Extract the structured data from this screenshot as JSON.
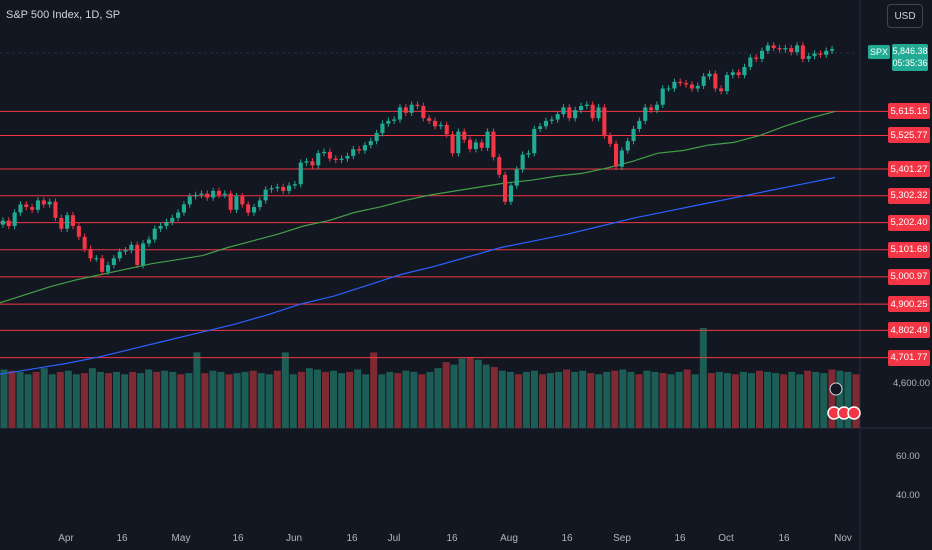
{
  "header": {
    "title": "S&P 500 Index, 1D, SP"
  },
  "currency_button": "USD",
  "symbol_tag": "SPX",
  "last_price": "5,846.38",
  "countdown": "05:35:36",
  "colors": {
    "up": "#22ab94",
    "down": "#f23645",
    "ma_short": "#43a047",
    "ma_long": "#2962ff",
    "level": "#f23645"
  },
  "levels": [
    "5,615.15",
    "5,525.77",
    "5,401.27",
    "5,302.32",
    "5,202.40",
    "5,101.68",
    "5,000.97",
    "4,900.25",
    "4,802.49",
    "4,701.77"
  ],
  "price_axis_extra": "4,600.00",
  "volume_axis": [
    "60.00",
    "40.00"
  ],
  "chart_data": {
    "type": "candlestick",
    "title": "S&P 500 Index, 1D, SP",
    "x_ticks": [
      "Apr",
      "16",
      "May",
      "16",
      "Jun",
      "16",
      "Jul",
      "16",
      "Aug",
      "16",
      "Sep",
      "16",
      "Oct",
      "16",
      "Nov"
    ],
    "ylim": [
      4600,
      5880
    ],
    "horizontal_levels": [
      5615.15,
      5525.77,
      5401.27,
      5302.32,
      5202.4,
      5101.68,
      5000.97,
      4900.25,
      4802.49,
      4701.77
    ],
    "last": 5846.38,
    "series": [
      {
        "type": "candlestick",
        "close": [
          5210,
          5190,
          5240,
          5270,
          5260,
          5250,
          5285,
          5270,
          5280,
          5220,
          5180,
          5230,
          5190,
          5150,
          5105,
          5070,
          5070,
          5020,
          5045,
          5070,
          5095,
          5100,
          5120,
          5045,
          5125,
          5140,
          5180,
          5190,
          5205,
          5220,
          5240,
          5270,
          5300,
          5305,
          5310,
          5295,
          5320,
          5305,
          5310,
          5250,
          5300,
          5270,
          5240,
          5260,
          5285,
          5325,
          5330,
          5335,
          5320,
          5340,
          5345,
          5425,
          5430,
          5415,
          5460,
          5465,
          5440,
          5435,
          5440,
          5450,
          5475,
          5470,
          5490,
          5505,
          5535,
          5570,
          5580,
          5585,
          5630,
          5610,
          5640,
          5635,
          5590,
          5580,
          5560,
          5565,
          5530,
          5460,
          5540,
          5510,
          5475,
          5500,
          5480,
          5540,
          5445,
          5380,
          5280,
          5340,
          5400,
          5455,
          5460,
          5550,
          5560,
          5580,
          5585,
          5605,
          5630,
          5590,
          5620,
          5635,
          5640,
          5590,
          5630,
          5525,
          5495,
          5410,
          5470,
          5505,
          5550,
          5580,
          5630,
          5620,
          5640,
          5700,
          5700,
          5725,
          5720,
          5715,
          5700,
          5710,
          5745,
          5755,
          5700,
          5690,
          5750,
          5760,
          5750,
          5780,
          5815,
          5810,
          5840,
          5860,
          5850,
          5845,
          5850,
          5835,
          5860,
          5810,
          5820,
          5830,
          5825,
          5840,
          5846.38
        ]
      },
      {
        "type": "line",
        "name": "",
        "note": "short moving average",
        "values": [
          4905,
          4935,
          4965,
          4990,
          5010,
          5030,
          5050,
          5065,
          5080,
          5110,
          5135,
          5160,
          5190,
          5210,
          5240,
          5260,
          5285,
          5305,
          5320,
          5335,
          5350,
          5360,
          5375,
          5385,
          5405,
          5430,
          5460,
          5470,
          5490,
          5500,
          5525,
          5560,
          5590,
          5615
        ]
      },
      {
        "type": "line",
        "name": "",
        "note": "long moving average",
        "values": [
          4640,
          4660,
          4680,
          4705,
          4735,
          4765,
          4795,
          4825,
          4860,
          4900,
          4930,
          4970,
          5010,
          5040,
          5075,
          5110,
          5135,
          5160,
          5190,
          5220,
          5245,
          5270,
          5295,
          5320,
          5345,
          5370
        ]
      },
      {
        "type": "bar",
        "name": "",
        "note": "volume",
        "values": [
          48,
          47,
          46,
          44,
          46,
          49,
          44,
          46,
          47,
          44,
          45,
          49,
          46,
          45,
          46,
          44,
          46,
          45,
          48,
          46,
          47,
          46,
          44,
          45,
          62,
          45,
          47,
          46,
          44,
          45,
          46,
          47,
          45,
          44,
          47,
          62,
          44,
          46,
          49,
          48,
          46,
          47,
          45,
          46,
          48,
          44,
          62,
          44,
          46,
          45,
          47,
          46,
          44,
          46,
          49,
          54,
          52,
          57,
          58,
          56,
          52,
          50,
          47,
          46,
          44,
          46,
          47,
          44,
          45,
          46,
          48,
          46,
          47,
          45,
          44,
          46,
          47,
          48,
          46,
          44,
          47,
          46,
          45,
          44,
          46,
          48,
          44,
          82,
          45,
          46,
          45,
          44,
          46,
          45,
          47,
          46,
          45,
          44,
          46,
          44,
          47,
          46,
          45,
          48,
          47,
          46,
          44
        ]
      }
    ]
  }
}
